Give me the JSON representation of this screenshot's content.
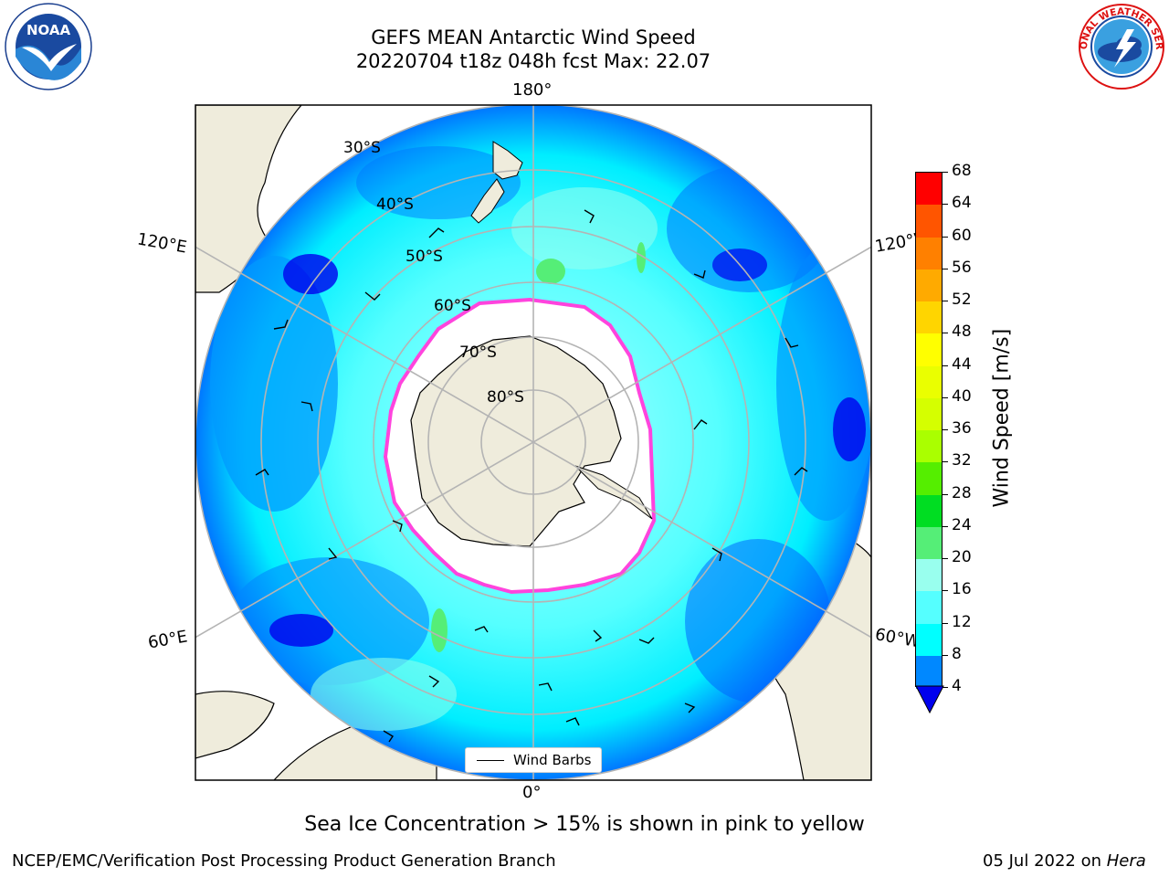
{
  "title": {
    "line1": "GEFS MEAN Antarctic Wind Speed",
    "line2": "20220704 t18z 048h fcst   Max: 22.07"
  },
  "map": {
    "projection": "south polar stereographic",
    "lon_labels": {
      "top": "180°",
      "bottom": "0°",
      "upper_left": "120°E",
      "upper_right": "120°W",
      "lower_left": "60°E",
      "lower_right": "60°W"
    },
    "lat_labels": [
      "30°S",
      "40°S",
      "50°S",
      "60°S",
      "70°S",
      "80°S"
    ],
    "colors": {
      "land": "#efecdc",
      "sea_ice": "#ffffff",
      "ice_edge": "#ff44dd",
      "grid": "#b4b4b4",
      "frame": "#000000"
    },
    "legend_label": "Wind Barbs"
  },
  "colorbar": {
    "title": "Wind Speed [m/s]",
    "ticks": [
      "68",
      "64",
      "60",
      "56",
      "52",
      "48",
      "44",
      "40",
      "36",
      "32",
      "28",
      "24",
      "20",
      "16",
      "12",
      "8",
      "4"
    ],
    "colors_top_to_bottom": [
      "#ff0000",
      "#ff2a00",
      "#ff5500",
      "#ff8000",
      "#ffaa00",
      "#ffd500",
      "#ffff00",
      "#eaff00",
      "#d5ff00",
      "#aaff00",
      "#55ee00",
      "#00dd22",
      "#55ee77",
      "#99ffee",
      "#55ffff",
      "#00ffff",
      "#0088ff"
    ],
    "extend_color": "#0000ee"
  },
  "caption": "Sea Ice Concentration > 15% is shown in pink to yellow",
  "footer": {
    "left": "NCEP/EMC/Verification Post Processing Product Generation Branch",
    "date": "05 Jul 2022 on ",
    "machine": "Hera"
  },
  "logos": {
    "left_text": "NOAA",
    "right_text": "NATIONAL WEATHER SERVICE"
  }
}
